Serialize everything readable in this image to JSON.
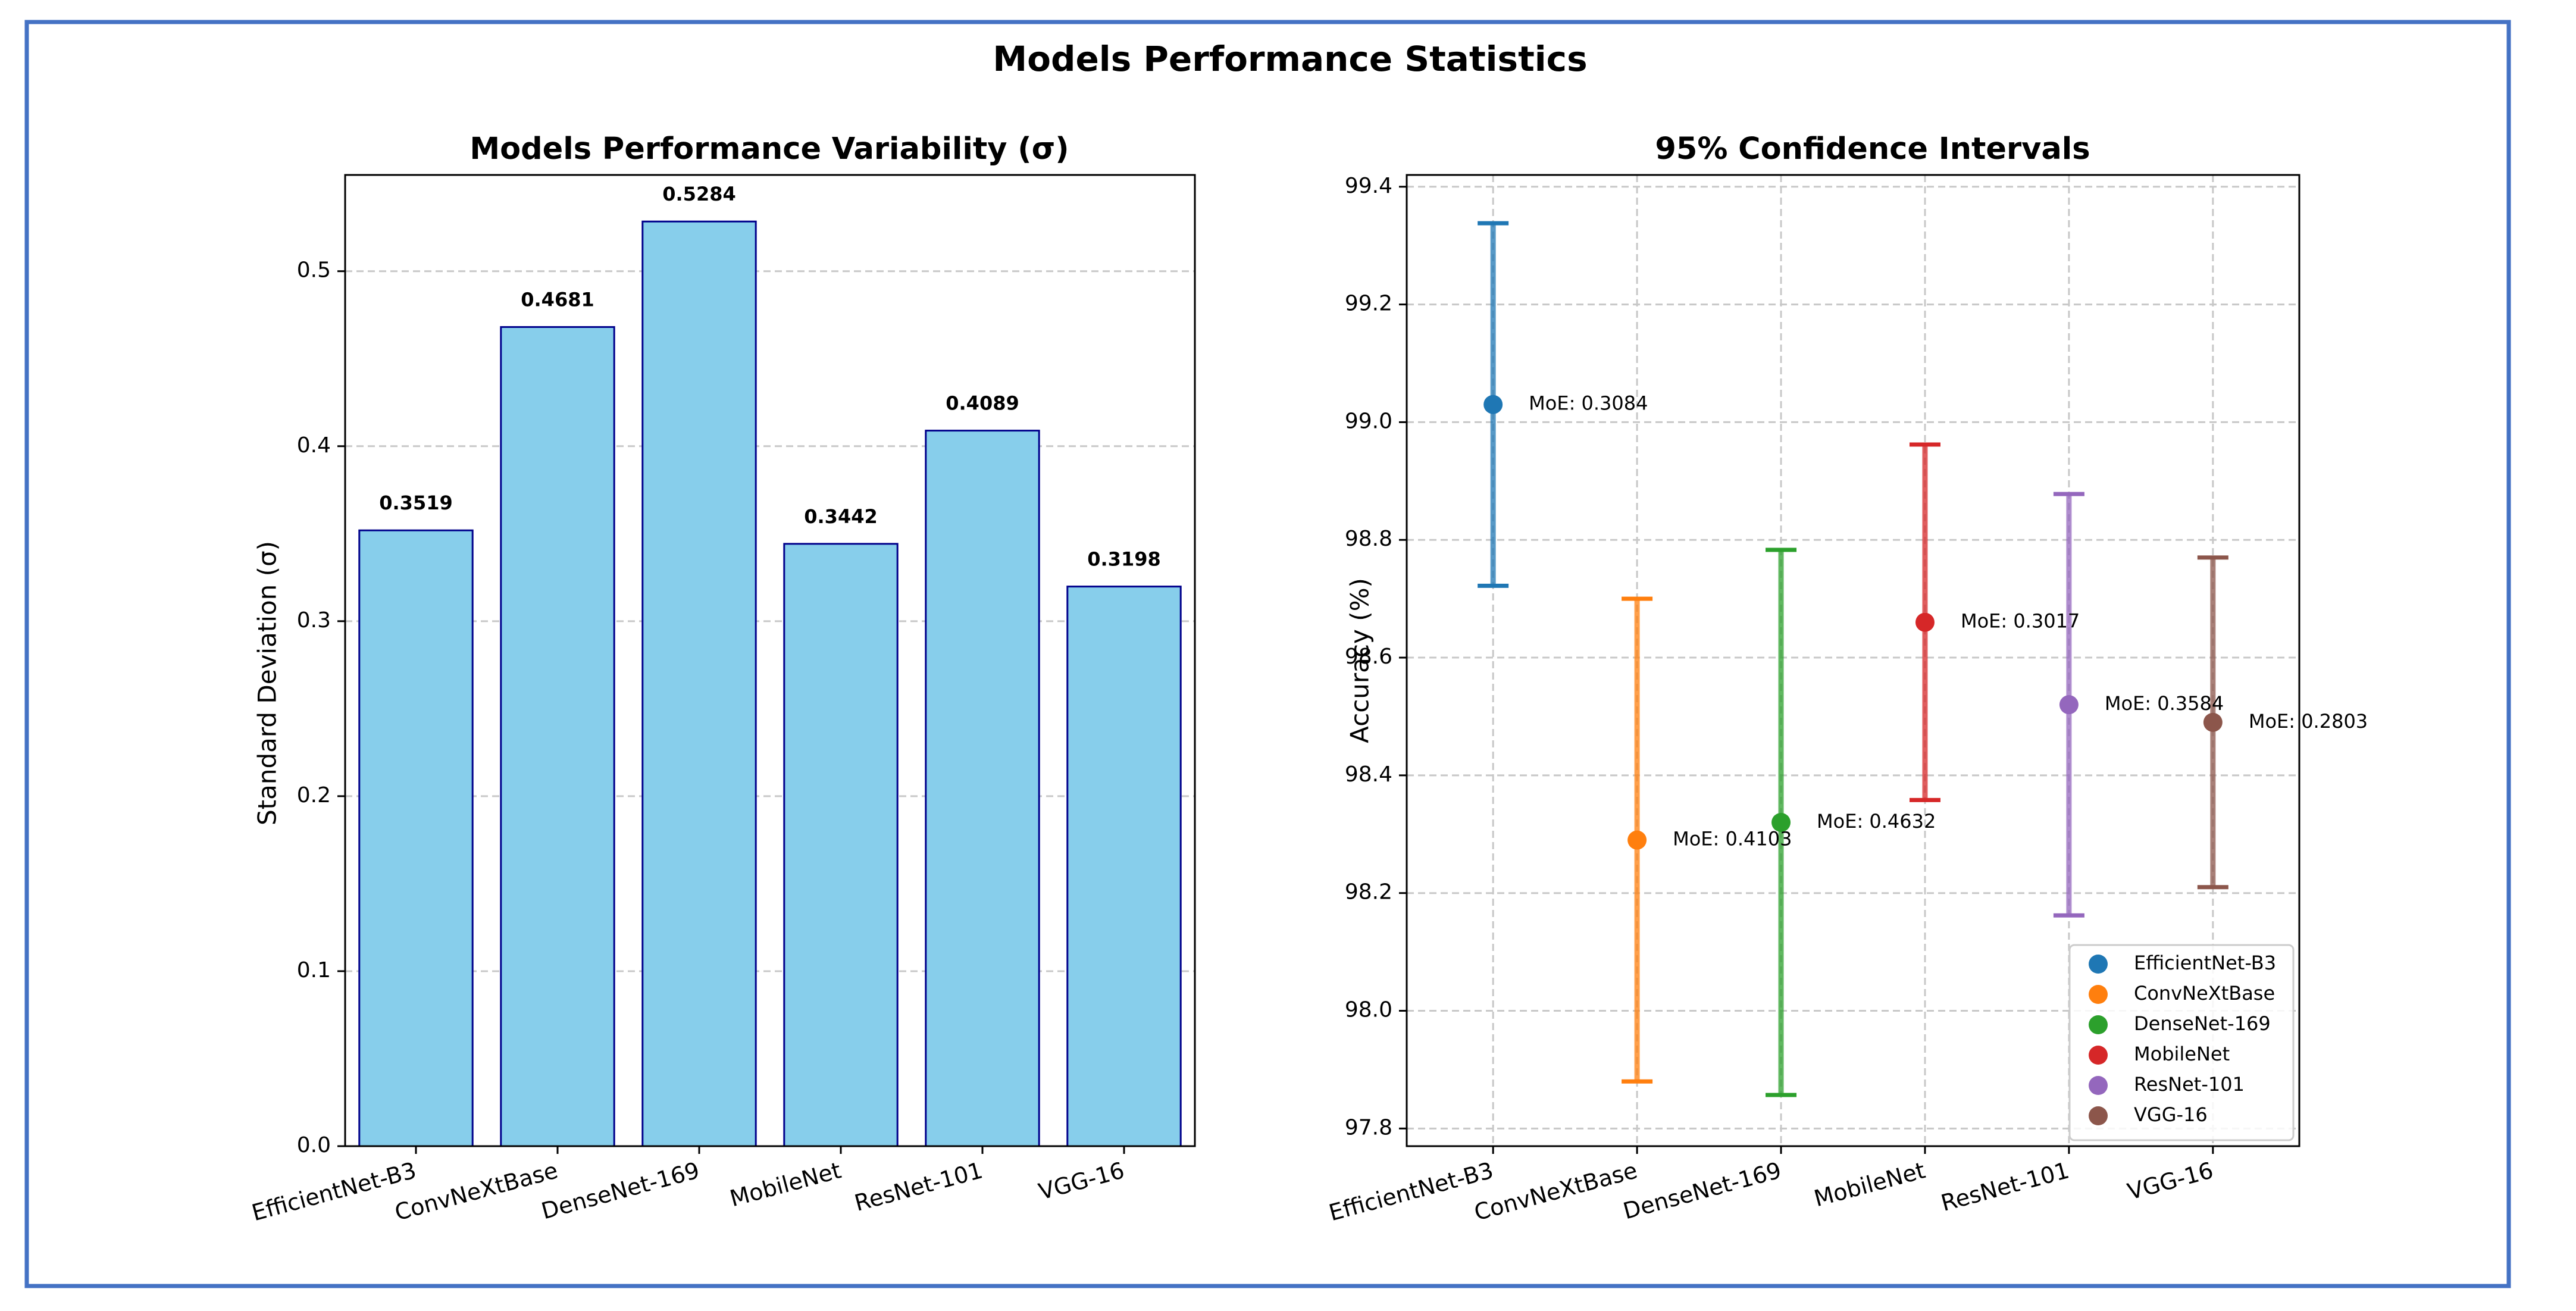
{
  "suptitle": "Models Performance Statistics",
  "colors": {
    "frame": "#4472C4",
    "bar_fill": "#87CEEB",
    "bar_edge": "#00008B",
    "grid": "#c8c8c8"
  },
  "chart_data": [
    {
      "type": "bar",
      "title": "Models Performance Variability (σ)",
      "xlabel": "",
      "ylabel": "Standard Deviation (σ)",
      "categories": [
        "EfficientNet-B3",
        "ConvNeXtBase",
        "DenseNet-169",
        "MobileNet",
        "ResNet-101",
        "VGG-16"
      ],
      "values": [
        0.3519,
        0.4681,
        0.5284,
        0.3442,
        0.4089,
        0.3198
      ],
      "value_labels": [
        "0.3519",
        "0.4681",
        "0.5284",
        "0.3442",
        "0.4089",
        "0.3198"
      ],
      "ylim": [
        0,
        0.555
      ],
      "yticks": [
        0.0,
        0.1,
        0.2,
        0.3,
        0.4,
        0.5
      ],
      "ytick_labels": [
        "0.0",
        "0.1",
        "0.2",
        "0.3",
        "0.4",
        "0.5"
      ],
      "grid": "y"
    },
    {
      "type": "errorbar",
      "title": "95% Confidence Intervals",
      "xlabel": "",
      "ylabel": "Accuracy (%)",
      "categories": [
        "EfficientNet-B3",
        "ConvNeXtBase",
        "DenseNet-169",
        "MobileNet",
        "ResNet-101",
        "VGG-16"
      ],
      "series": [
        {
          "name": "EfficientNet-B3",
          "mean": 99.03,
          "lower": 98.722,
          "upper": 99.338,
          "moe_label": "MoE: 0.3084",
          "color": "#1f77b4"
        },
        {
          "name": "ConvNeXtBase",
          "mean": 98.29,
          "lower": 97.88,
          "upper": 98.7,
          "moe_label": "MoE: 0.4103",
          "color": "#ff7f0e"
        },
        {
          "name": "DenseNet-169",
          "mean": 98.32,
          "lower": 97.857,
          "upper": 98.783,
          "moe_label": "MoE: 0.4632",
          "color": "#2ca02c"
        },
        {
          "name": "MobileNet",
          "mean": 98.66,
          "lower": 98.358,
          "upper": 98.962,
          "moe_label": "MoE: 0.3017",
          "color": "#d62728"
        },
        {
          "name": "ResNet-101",
          "mean": 98.52,
          "lower": 98.162,
          "upper": 98.878,
          "moe_label": "MoE: 0.3584",
          "color": "#9467bd"
        },
        {
          "name": "VGG-16",
          "mean": 98.49,
          "lower": 98.21,
          "upper": 98.77,
          "moe_label": "MoE: 0.2803",
          "color": "#8c564b"
        }
      ],
      "ylim": [
        97.77,
        99.42
      ],
      "yticks": [
        97.8,
        98.0,
        98.2,
        98.4,
        98.6,
        98.8,
        99.0,
        99.2,
        99.4
      ],
      "ytick_labels": [
        "97.8",
        "98.0",
        "98.2",
        "98.4",
        "98.6",
        "98.8",
        "99.0",
        "99.2",
        "99.4"
      ],
      "grid": "both",
      "legend": "lower-right"
    }
  ]
}
